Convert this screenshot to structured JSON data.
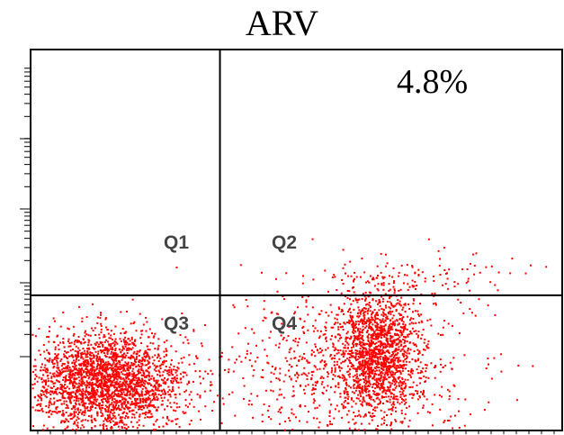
{
  "chart_data": {
    "type": "scatter",
    "title": "ARV",
    "annotation": "4.8%",
    "quadrant_labels": [
      "Q1",
      "Q2",
      "Q3",
      "Q4"
    ],
    "xlim": [
      0,
      1
    ],
    "ylim": [
      0,
      1
    ],
    "gates": {
      "x": 0.355,
      "y": 0.355
    },
    "point_color": "#ff0000",
    "populations": [
      {
        "name": "",
        "quadrant": "Q3",
        "count": 2600,
        "center": [
          0.14,
          0.13
        ],
        "spread": [
          0.075,
          0.065
        ]
      },
      {
        "name": "",
        "quadrant": "Q4",
        "count": 1400,
        "center": [
          0.65,
          0.21
        ],
        "spread": [
          0.035,
          0.075
        ]
      },
      {
        "name": "",
        "quadrant": "Q4",
        "count": 900,
        "center": [
          0.6,
          0.16
        ],
        "spread": [
          0.11,
          0.11
        ]
      },
      {
        "name": "",
        "quadrant": "Q2",
        "count": 110,
        "center": [
          0.73,
          0.4
        ],
        "spread": [
          0.09,
          0.035
        ]
      }
    ]
  }
}
